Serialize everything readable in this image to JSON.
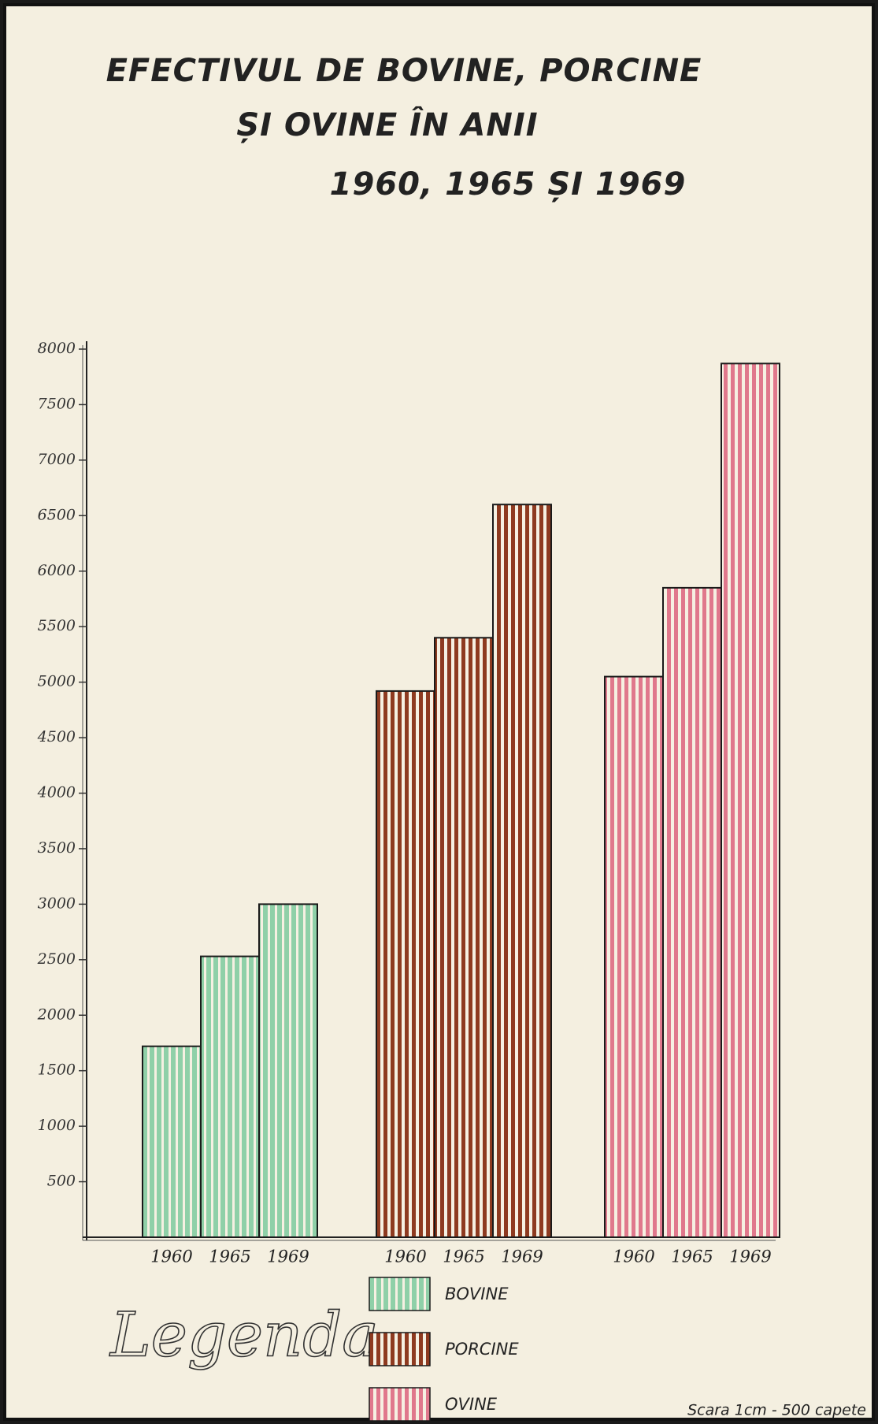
{
  "chart_data": {
    "type": "bar",
    "title": [
      "EFECTIVUL DE BOVINE, PORCINE",
      "ȘI OVINE ÎN ANII",
      "1960, 1965 ȘI 1969"
    ],
    "categories": [
      "1960",
      "1965",
      "1969"
    ],
    "series": [
      {
        "name": "BOVINE",
        "color": "#8fd0a8",
        "values": [
          1720,
          2530,
          3000
        ]
      },
      {
        "name": "PORCINE",
        "color": "#8e3a20",
        "values": [
          4920,
          5400,
          6600
        ]
      },
      {
        "name": "OVINE",
        "color": "#e0788c",
        "values": [
          5050,
          5850,
          7870
        ]
      }
    ],
    "ylim": [
      0,
      8000
    ],
    "yticks": [
      500,
      1000,
      1500,
      2000,
      2500,
      3000,
      3500,
      4000,
      4500,
      5000,
      5500,
      6000,
      6500,
      7000,
      7500,
      8000
    ],
    "legend_title": "Legenda",
    "note": "Scara 1cm - 500 capete"
  }
}
